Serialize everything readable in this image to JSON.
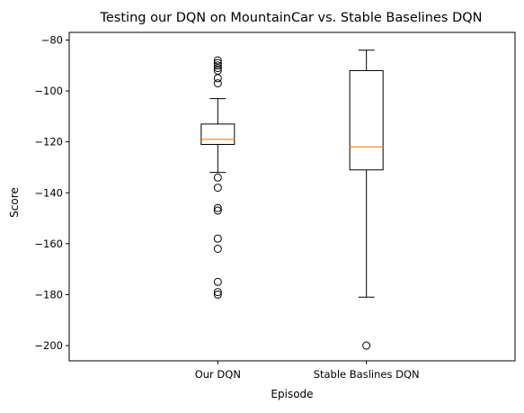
{
  "chart_data": {
    "type": "box",
    "title": "Testing our DQN on MountainCar vs. Stable Baselines DQN",
    "xlabel": "Episode",
    "ylabel": "Score",
    "ylim": [
      -206,
      -77
    ],
    "yticks": [
      -80,
      -100,
      -120,
      -140,
      -160,
      -180,
      -200
    ],
    "grid": false,
    "categories": [
      "Our DQN",
      "Stable Baslines DQN"
    ],
    "boxes": [
      {
        "category": "Our DQN",
        "whisker_low": -132,
        "q1": -121,
        "median": -119,
        "q3": -113,
        "whisker_high": -103,
        "outliers": [
          -88,
          -89,
          -90,
          -91,
          -92,
          -95,
          -97,
          -134,
          -138,
          -146,
          -147,
          -158,
          -162,
          -175,
          -179,
          -180
        ]
      },
      {
        "category": "Stable Baslines DQN",
        "whisker_low": -181,
        "q1": -131,
        "median": -122,
        "q3": -92,
        "whisker_high": -84,
        "outliers": [
          -200
        ]
      }
    ],
    "colors": {
      "box": "#000000",
      "median": "#ff7f0e",
      "outlier": "#000000"
    }
  }
}
